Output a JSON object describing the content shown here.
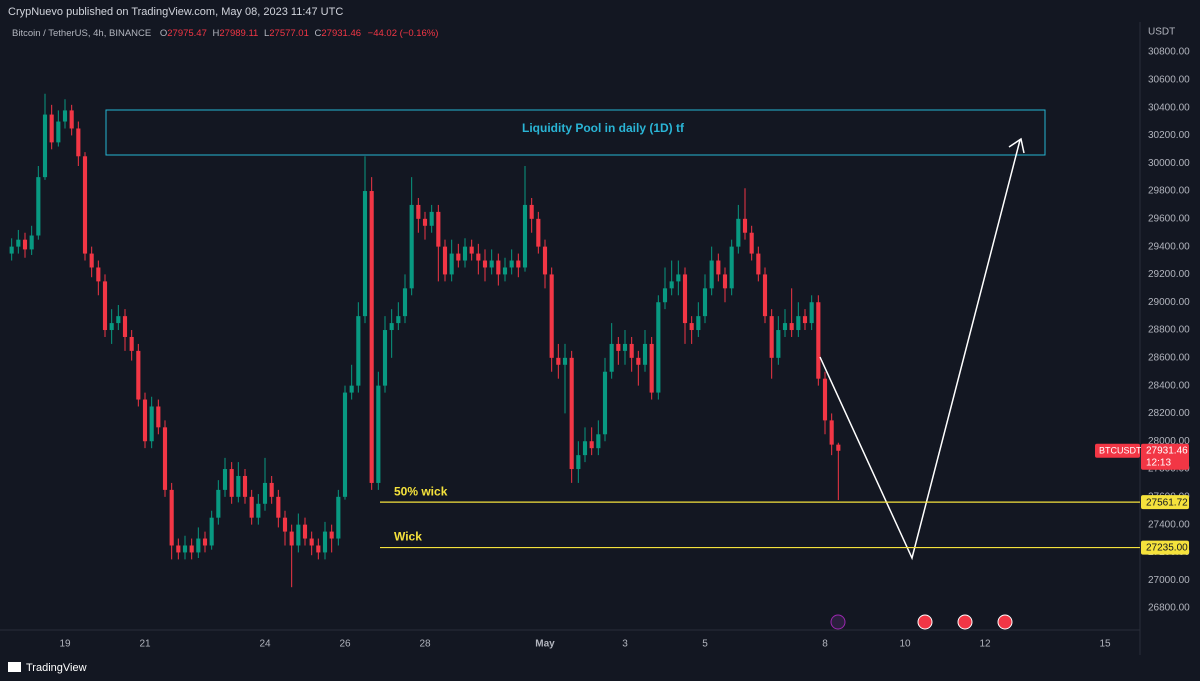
{
  "header": {
    "published": "CrypNuevo published on TradingView.com, May 08, 2023 11:47 UTC"
  },
  "chart_data": {
    "type": "candlestick",
    "symbol": "Bitcoin / TetherUS, 4h, BINANCE",
    "ohlc_labels": [
      "O",
      "H",
      "L",
      "C"
    ],
    "change": "−44.02 (−0.16%)",
    "currency": "USDT",
    "ticker": "BTCUSDT",
    "countdown": "12:13",
    "zone_label": "Liquidity Pool in daily (1D) tf",
    "up_color": "#089981",
    "down_color": "#f23645",
    "grid": false,
    "open": [
      29350,
      29400,
      29450,
      29380,
      29480,
      29900,
      30350,
      30150,
      30300,
      30380,
      30250,
      30050,
      29350,
      29250,
      29150,
      28800,
      28850,
      28900,
      28750,
      28650,
      28300,
      28000,
      28250,
      28100,
      27650,
      27250,
      27200,
      27250,
      27200,
      27300,
      27250,
      27450,
      27650,
      27800,
      27600,
      27750,
      27600,
      27450,
      27550,
      27700,
      27600,
      27450,
      27350,
      27250,
      27400,
      27300,
      27250,
      27200,
      27350,
      27300,
      27600,
      28350,
      28400,
      28900,
      29800,
      27700,
      28400,
      28800,
      28850,
      28900,
      29100,
      29700,
      29600,
      29550,
      29650,
      29400,
      29200,
      29350,
      29300,
      29400,
      29350,
      29300,
      29250,
      29300,
      29200,
      29250,
      29300,
      29250,
      29700,
      29600,
      29400,
      29200,
      28600,
      28550,
      28600,
      27800,
      27900,
      28000,
      27950,
      28050,
      28500,
      28700,
      28650,
      28700,
      28600,
      28550,
      28700,
      28350,
      29000,
      29100,
      29150,
      29200,
      28850,
      28800,
      28900,
      29100,
      29300,
      29200,
      29100,
      29400,
      29600,
      29500,
      29350,
      29200,
      28900,
      28600,
      28800,
      28850,
      28800,
      28900,
      28850,
      29000,
      28450,
      28150,
      27975.47
    ],
    "high": [
      29460,
      29520,
      29500,
      29550,
      29980,
      30500,
      30420,
      30380,
      30460,
      30420,
      30300,
      30080,
      29400,
      29300,
      29200,
      28950,
      28980,
      28950,
      28800,
      28700,
      28350,
      28320,
      28300,
      28150,
      27700,
      27300,
      27320,
      27300,
      27380,
      27350,
      27500,
      27720,
      27880,
      27850,
      27850,
      27800,
      27650,
      27620,
      27880,
      27750,
      27650,
      27500,
      27400,
      27480,
      27450,
      27350,
      27300,
      27420,
      27400,
      27650,
      28400,
      28550,
      29000,
      30050,
      29900,
      28500,
      28900,
      28950,
      29000,
      29200,
      29900,
      29750,
      29650,
      29700,
      29700,
      29450,
      29450,
      29420,
      29460,
      29450,
      29420,
      29380,
      29380,
      29350,
      29320,
      29380,
      29350,
      29980,
      29750,
      29650,
      29450,
      29250,
      28700,
      28700,
      28650,
      28000,
      28100,
      28100,
      28150,
      28600,
      28850,
      28750,
      28800,
      28750,
      28650,
      28800,
      28750,
      29050,
      29250,
      29300,
      29300,
      29250,
      28900,
      29000,
      29200,
      29400,
      29350,
      29250,
      29450,
      29700,
      29820,
      29550,
      29400,
      29250,
      28950,
      28900,
      28950,
      29100,
      29000,
      28950,
      29050,
      29050,
      28500,
      28200,
      27989.11
    ],
    "low": [
      29300,
      29350,
      29320,
      29340,
      29450,
      29880,
      30100,
      30120,
      30250,
      30200,
      29980,
      29300,
      29180,
      29050,
      28750,
      28700,
      28800,
      28650,
      28580,
      28250,
      27950,
      27950,
      28050,
      27600,
      27150,
      27150,
      27150,
      27150,
      27160,
      27200,
      27220,
      27400,
      27600,
      27550,
      27560,
      27550,
      27400,
      27400,
      27500,
      27550,
      27380,
      27250,
      26950,
      27200,
      27250,
      27180,
      27150,
      27150,
      27200,
      27250,
      27580,
      28300,
      28350,
      28850,
      27650,
      27650,
      28350,
      28600,
      28800,
      28850,
      29050,
      29500,
      29450,
      29500,
      29150,
      29150,
      29150,
      29250,
      29250,
      29300,
      29200,
      29150,
      29200,
      29120,
      29150,
      29200,
      29180,
      29220,
      29500,
      29350,
      29100,
      28500,
      28450,
      28200,
      27700,
      27700,
      27850,
      27900,
      27900,
      28000,
      28450,
      28550,
      28550,
      28500,
      28400,
      28500,
      28300,
      28300,
      28950,
      29050,
      29050,
      28700,
      28700,
      28750,
      28850,
      29050,
      29150,
      29000,
      29050,
      29350,
      29450,
      29300,
      29150,
      28850,
      28450,
      28550,
      28750,
      28750,
      28750,
      28800,
      28800,
      28400,
      28050,
      27900,
      27577.01
    ],
    "close": [
      29400,
      29450,
      29380,
      29480,
      29900,
      30350,
      30150,
      30300,
      30380,
      30250,
      30050,
      29350,
      29250,
      29150,
      28800,
      28850,
      28900,
      28750,
      28650,
      28300,
      28000,
      28250,
      28100,
      27650,
      27250,
      27200,
      27250,
      27200,
      27300,
      27250,
      27450,
      27650,
      27800,
      27600,
      27750,
      27600,
      27450,
      27550,
      27700,
      27600,
      27450,
      27350,
      27250,
      27400,
      27300,
      27250,
      27200,
      27350,
      27300,
      27600,
      28350,
      28400,
      28900,
      29800,
      27700,
      28400,
      28800,
      28850,
      28900,
      29100,
      29700,
      29600,
      29550,
      29650,
      29400,
      29200,
      29350,
      29300,
      29400,
      29350,
      29300,
      29250,
      29300,
      29200,
      29250,
      29300,
      29250,
      29700,
      29600,
      29400,
      29200,
      28600,
      28550,
      28600,
      27800,
      27900,
      28000,
      27950,
      28050,
      28500,
      28700,
      28650,
      28700,
      28600,
      28550,
      28700,
      28350,
      29000,
      29100,
      29150,
      29200,
      28850,
      28800,
      28900,
      29100,
      29300,
      29200,
      29100,
      29400,
      29600,
      29500,
      29350,
      29200,
      28900,
      28600,
      28800,
      28850,
      28800,
      28900,
      28850,
      29000,
      28450,
      28150,
      27975.47,
      27931.46
    ],
    "xlim": [
      -1.75,
      169.25
    ],
    "xticks": [
      {
        "value": 8,
        "label": "19"
      },
      {
        "value": 20,
        "label": "21"
      },
      {
        "value": 38,
        "label": "24"
      },
      {
        "value": 50,
        "label": "26"
      },
      {
        "value": 62,
        "label": "28"
      },
      {
        "value": 80,
        "label": "May"
      },
      {
        "value": 92,
        "label": "3"
      },
      {
        "value": 104,
        "label": "5"
      },
      {
        "value": 122,
        "label": "8"
      },
      {
        "value": 134,
        "label": "10"
      },
      {
        "value": 146,
        "label": "12"
      },
      {
        "value": 164,
        "label": "15"
      }
    ],
    "ylim": [
      26642,
      31016
    ],
    "yticks": [
      {
        "value": 26800,
        "label": "26800.00"
      },
      {
        "value": 27000,
        "label": "27000.00"
      },
      {
        "value": 27200,
        "label": "27200.00"
      },
      {
        "value": 27400,
        "label": "27400.00"
      },
      {
        "value": 27600,
        "label": "27600.00"
      },
      {
        "value": 27800,
        "label": "27800.00"
      },
      {
        "value": 28000,
        "label": "28000.00"
      },
      {
        "value": 28200,
        "label": "28200.00"
      },
      {
        "value": 28400,
        "label": "28400.00"
      },
      {
        "value": 28600,
        "label": "28600.00"
      },
      {
        "value": 28800,
        "label": "28800.00"
      },
      {
        "value": 29000,
        "label": "29000.00"
      },
      {
        "value": 29200,
        "label": "29200.00"
      },
      {
        "value": 29400,
        "label": "29400.00"
      },
      {
        "value": 29600,
        "label": "29600.00"
      },
      {
        "value": 29800,
        "label": "29800.00"
      },
      {
        "value": 30000,
        "label": "30000.00"
      },
      {
        "value": 30200,
        "label": "30200.00"
      },
      {
        "value": 30400,
        "label": "30400.00"
      },
      {
        "value": 30600,
        "label": "30600.00"
      },
      {
        "value": 30800,
        "label": "30800.00"
      }
    ],
    "levels": [
      {
        "name": "50% wick",
        "value": 27561.72
      },
      {
        "name": "Wick",
        "value": 27235,
        "value_label": "27235.00"
      }
    ],
    "level_color": "#f5e23c"
  },
  "footer": {
    "brand": "TradingView"
  }
}
